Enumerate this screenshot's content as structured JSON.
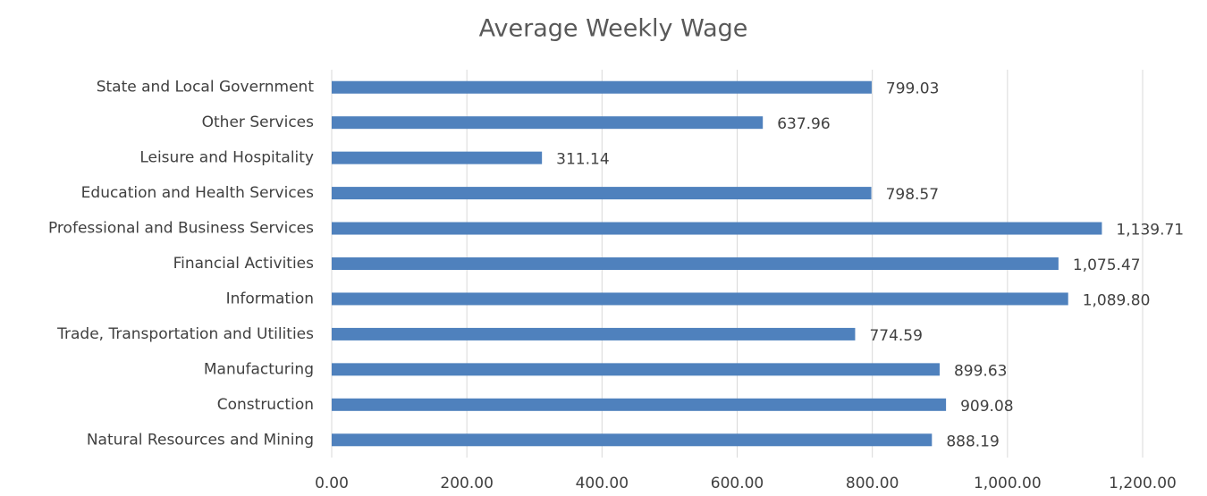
{
  "chart_data": {
    "type": "hbar",
    "title": "Average Weekly Wage",
    "categories": [
      "Natural Resources and Mining",
      "Construction",
      "Manufacturing",
      "Trade, Transportation and Utilities",
      "Information",
      "Financial Activities",
      "Professional and Business Services",
      "Education and Health Services",
      "Leisure and Hospitality",
      "Other Services",
      "State and Local Government"
    ],
    "values": [
      888.19,
      909.08,
      899.63,
      774.59,
      1089.8,
      1075.47,
      1139.71,
      798.57,
      311.14,
      637.96,
      799.03
    ],
    "value_labels": [
      "888.19",
      "909.08",
      "899.63",
      "774.59",
      "1,089.80",
      "1,075.47",
      "1,139.71",
      "798.57",
      "311.14",
      "637.96",
      "799.03"
    ],
    "color": "#4f81bd",
    "xlim": [
      0,
      1200
    ],
    "xticks": [
      {
        "value": 0,
        "label": "0.00"
      },
      {
        "value": 200,
        "label": "200.00"
      },
      {
        "value": 400,
        "label": "400.00"
      },
      {
        "value": 600,
        "label": "600.00"
      },
      {
        "value": 800,
        "label": "800.00"
      },
      {
        "value": 1000,
        "label": "1,000.00"
      },
      {
        "value": 1200,
        "label": "1,200.00"
      }
    ],
    "grid": true
  }
}
